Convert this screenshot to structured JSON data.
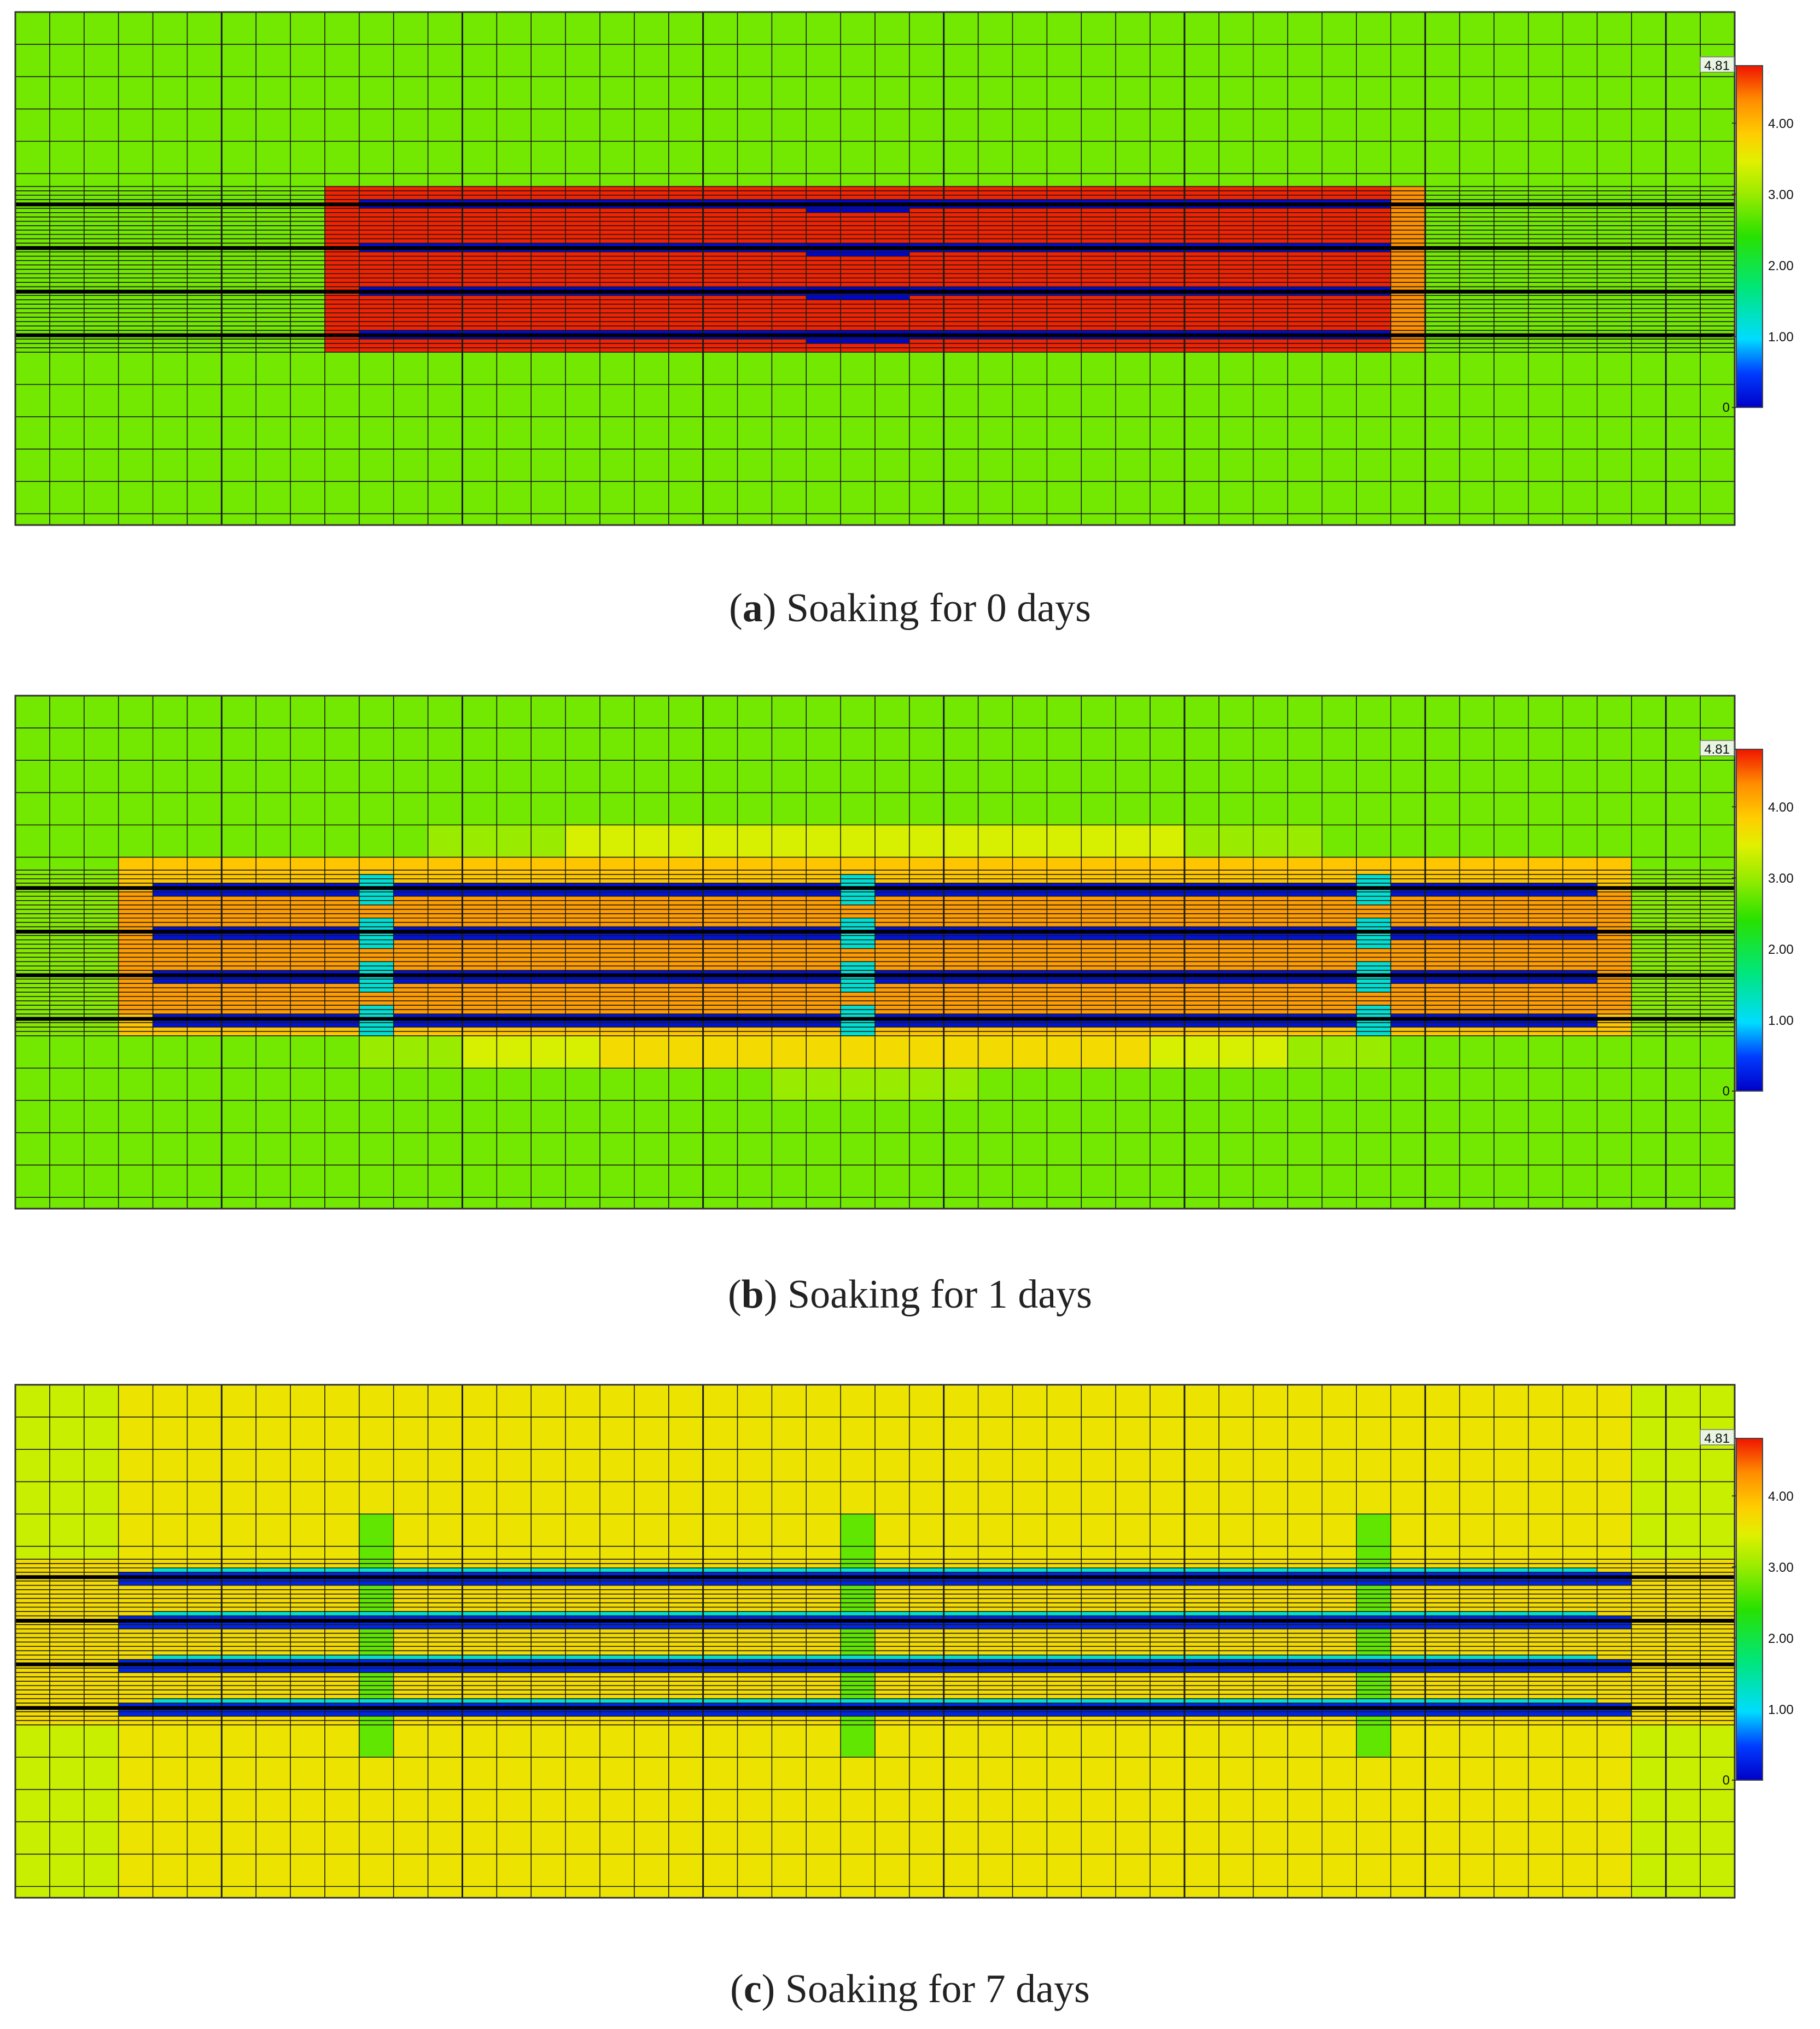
{
  "chart_data": [
    {
      "type": "heatmap",
      "letter": "a",
      "caption": "Soaking for 0 days",
      "colorbar": {
        "min": 0,
        "max": 4.81,
        "ticks": [
          "0",
          "1.00",
          "2.00",
          "3.00",
          "4.00",
          "4.81"
        ]
      },
      "background_value": 2.8,
      "stimulated_region": {
        "x_start": 0.17,
        "x_end": 0.83,
        "value": 4.75,
        "edge_value": 4.3,
        "outer_edge_value": 3.8
      },
      "fracture_values": {
        "main": 0.1,
        "center": 0.6
      },
      "wells": 4
    },
    {
      "type": "heatmap",
      "letter": "b",
      "caption": "Soaking for 1 days",
      "colorbar": {
        "min": 0,
        "max": 4.81,
        "ticks": [
          "0",
          "1.00",
          "2.00",
          "3.00",
          "4.00",
          "4.81"
        ]
      },
      "background_value": 2.8,
      "plume_rings": [
        {
          "x_start": 0.1,
          "x_end": 0.9,
          "value": 3.0
        },
        {
          "x_start": 0.06,
          "x_end": 0.94,
          "value": 3.4
        },
        {
          "x_start": 0.05,
          "x_end": 0.95,
          "value": 3.7
        },
        {
          "x_start": 0.06,
          "x_end": 0.94,
          "value": 4.0
        },
        {
          "x_start": 0.08,
          "x_end": 0.92,
          "value": 4.3
        }
      ],
      "fracture_values": {
        "main": 0.15,
        "center": 1.2
      },
      "wells": 4
    },
    {
      "type": "heatmap",
      "letter": "c",
      "caption": "Soaking for 7 days",
      "colorbar": {
        "min": 0,
        "max": 4.81,
        "ticks": [
          "0",
          "1.00",
          "2.00",
          "3.00",
          "4.00",
          "4.81"
        ]
      },
      "background_value": 3.6,
      "edge_value": 3.3,
      "spots_value": 2.7,
      "fracture_values": {
        "main": 0.3,
        "edge": 1.2
      },
      "wells": 4
    }
  ]
}
